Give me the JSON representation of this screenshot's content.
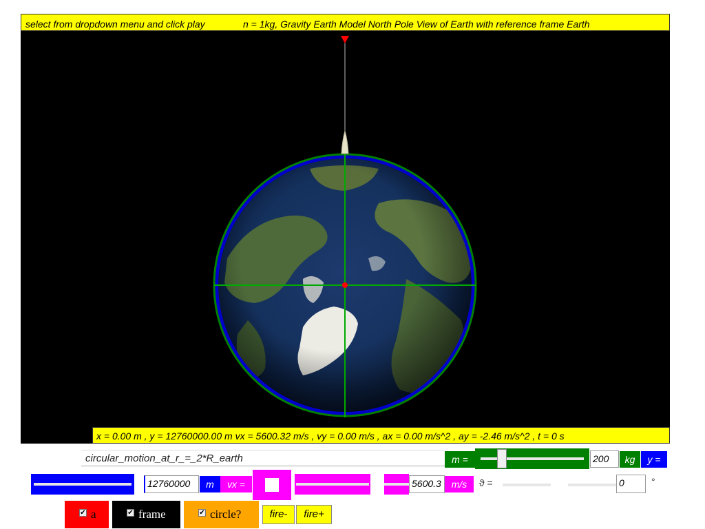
{
  "top_bar": {
    "left_text": "select from dropdown menu and click play",
    "right_text": "n = 1kg, Gravity Earth Model North Pole View of Earth with reference frame Earth"
  },
  "readout": {
    "text": "x = 0.00 m , y = 12760000.00 m vx = 5600.32 m/s , vy = 0.00 m/s , ax = 0.00 m/s^2 , ay = -2.46 m/s^2 , t = 0 s"
  },
  "scenario_select": {
    "value": "circular_motion_at_r_=_2*R_earth"
  },
  "mass": {
    "label": "m =",
    "value": "200",
    "unit": "kg",
    "slider_fraction": 0.25
  },
  "y_control": {
    "label": "y =",
    "value": "12760000",
    "unit": "m"
  },
  "vx_control": {
    "label": "vx =",
    "value": "5600.3",
    "unit": "m/s"
  },
  "theta_control": {
    "label": "ϑ =",
    "value": "0",
    "unit": "°"
  },
  "buttons": {
    "a": {
      "label": "a",
      "checked": true,
      "color": "#ff0000"
    },
    "frame": {
      "label": "frame",
      "checked": true,
      "color": "#000000"
    },
    "circle": {
      "label": "circle?",
      "checked": true,
      "color": "#ffa500"
    },
    "fire_minus": "fire-",
    "fire_plus": "fire+"
  },
  "colors": {
    "status_bar": "#ffff00",
    "canvas_bg": "#000000",
    "mass_panel": "#008000",
    "y_panel": "#0000ff",
    "vx_panel": "#ff00ff",
    "orbit_ring": "#0000ff",
    "axes": "#00aa00",
    "marker": "#ff0000"
  }
}
